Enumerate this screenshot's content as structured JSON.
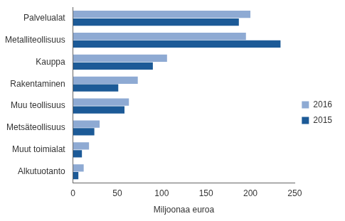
{
  "chart_data": {
    "type": "bar",
    "orientation": "horizontal",
    "categories": [
      "Palvelualat",
      "Metalliteollisuus",
      "Kauppa",
      "Rakentaminen",
      "Muu teollisuus",
      "Metsäteollisuus",
      "Muut toimialat",
      "Alkutuotanto"
    ],
    "series": [
      {
        "name": "2016",
        "color": "#8eaad3",
        "values": [
          200,
          195,
          106,
          73,
          63,
          30,
          18,
          12
        ]
      },
      {
        "name": "2015",
        "color": "#1c5a97",
        "values": [
          187,
          234,
          90,
          51,
          58,
          24,
          10,
          6
        ]
      }
    ],
    "x_label": "Miljoonaa euroa",
    "xlim": [
      0,
      250
    ],
    "xticks": [
      0,
      50,
      100,
      150,
      200,
      250
    ],
    "grid": false,
    "legend": "right"
  }
}
